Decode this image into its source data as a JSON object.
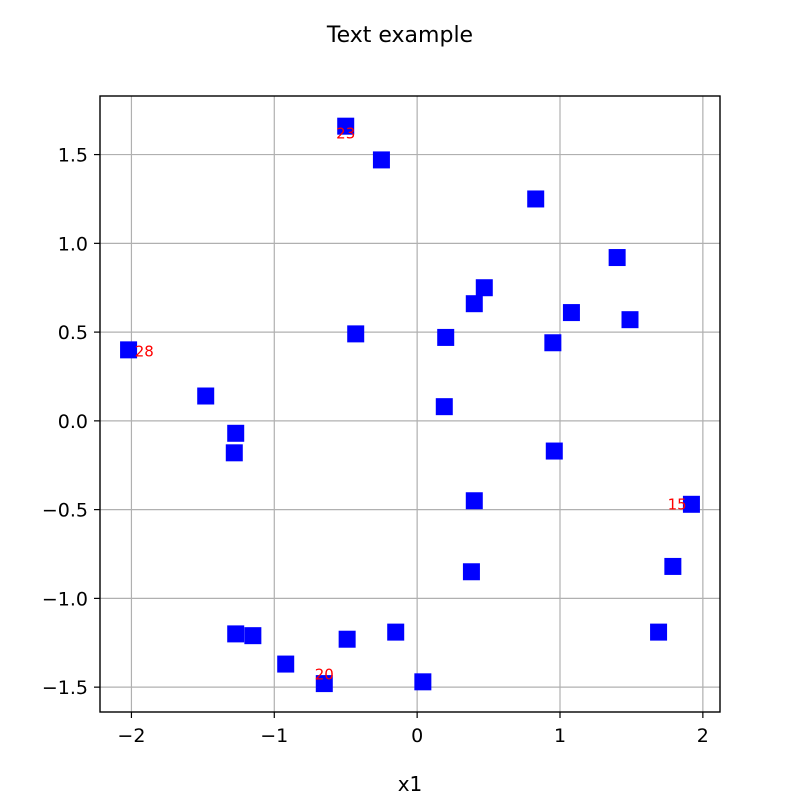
{
  "chart_data": {
    "type": "scatter",
    "title": "Text example",
    "xlabel": "x1",
    "ylabel": "",
    "xlim": [
      -2.22,
      2.12
    ],
    "ylim": [
      -1.64,
      1.83
    ],
    "xticks": [
      -2,
      -1,
      0,
      1,
      2
    ],
    "xtick_labels": [
      "−2",
      "−1",
      "0",
      "1",
      "2"
    ],
    "yticks": [
      -1.5,
      -1.0,
      -0.5,
      0.0,
      0.5,
      1.0,
      1.5
    ],
    "ytick_labels": [
      "−1.5",
      "−1.0",
      "−0.5",
      "0.0",
      "0.5",
      "1.0",
      "1.5"
    ],
    "grid": true,
    "marker": "square",
    "marker_color": "#0000ff",
    "annotation_color": "#ff0000",
    "points": [
      {
        "x": -0.5,
        "y": 1.66
      },
      {
        "x": -0.25,
        "y": 1.47
      },
      {
        "x": 0.83,
        "y": 1.25
      },
      {
        "x": 1.4,
        "y": 0.92
      },
      {
        "x": 0.47,
        "y": 0.75
      },
      {
        "x": 0.4,
        "y": 0.66
      },
      {
        "x": 1.08,
        "y": 0.61
      },
      {
        "x": 1.49,
        "y": 0.57
      },
      {
        "x": -0.43,
        "y": 0.49
      },
      {
        "x": 0.2,
        "y": 0.47
      },
      {
        "x": 0.95,
        "y": 0.44
      },
      {
        "x": -2.02,
        "y": 0.4
      },
      {
        "x": -1.48,
        "y": 0.14
      },
      {
        "x": 0.19,
        "y": 0.08
      },
      {
        "x": -1.27,
        "y": -0.07
      },
      {
        "x": -1.28,
        "y": -0.18
      },
      {
        "x": 0.96,
        "y": -0.17
      },
      {
        "x": 0.4,
        "y": -0.45
      },
      {
        "x": 1.92,
        "y": -0.47
      },
      {
        "x": 0.38,
        "y": -0.85
      },
      {
        "x": 1.79,
        "y": -0.82
      },
      {
        "x": 1.69,
        "y": -1.19
      },
      {
        "x": -1.27,
        "y": -1.2
      },
      {
        "x": -1.15,
        "y": -1.21
      },
      {
        "x": -0.15,
        "y": -1.19
      },
      {
        "x": -0.49,
        "y": -1.23
      },
      {
        "x": -0.92,
        "y": -1.37
      },
      {
        "x": -0.65,
        "y": -1.48
      },
      {
        "x": 0.04,
        "y": -1.47
      }
    ],
    "annotations": [
      {
        "text": "23",
        "x": -0.5,
        "y": 1.62
      },
      {
        "text": "28",
        "x": -1.91,
        "y": 0.39
      },
      {
        "text": "15",
        "x": 1.82,
        "y": -0.47
      },
      {
        "text": "20",
        "x": -0.65,
        "y": -1.43
      }
    ]
  }
}
